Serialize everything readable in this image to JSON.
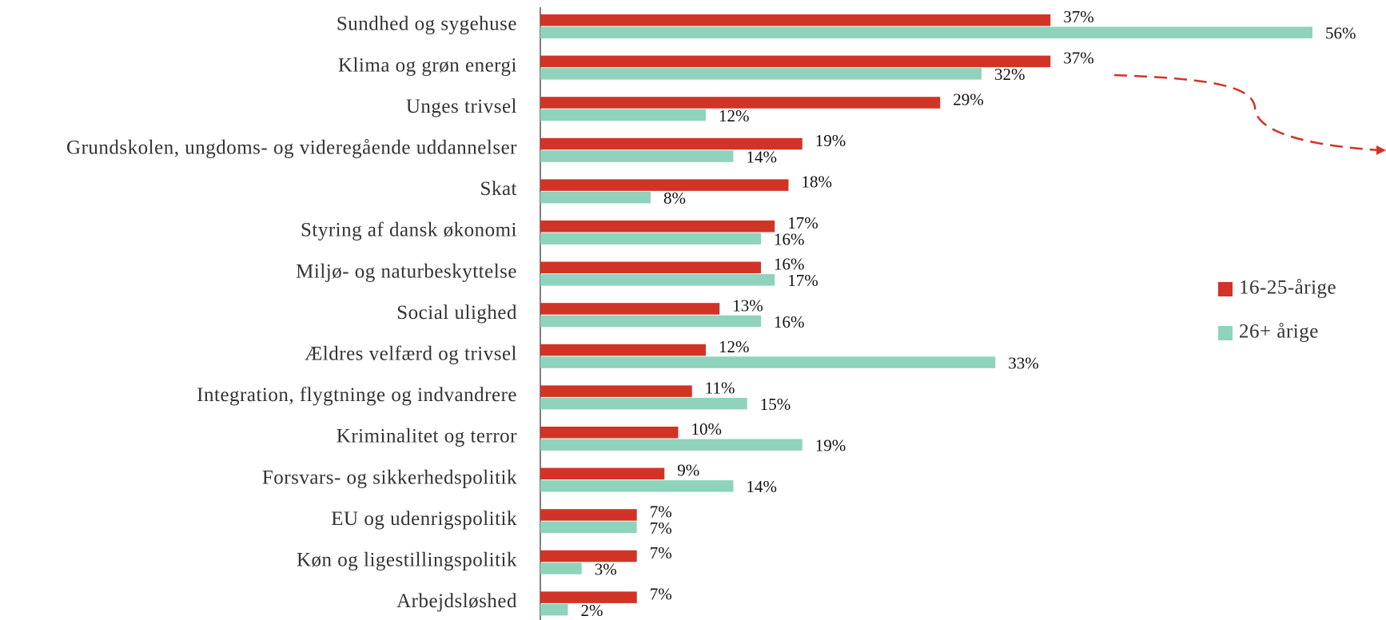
{
  "chart_data": {
    "type": "barh",
    "categories": [
      "Sundhed og sygehuse",
      "Klima og grøn energi",
      "Unges trivsel",
      "Grundskolen, ungdoms- og videregående uddannelser",
      "Skat",
      "Styring af dansk økonomi",
      "Miljø- og naturbeskyttelse",
      "Social ulighed",
      "Ældres velfærd og trivsel",
      "Integration, flygtninge og indvandrere",
      "Kriminalitet og terror",
      "Forsvars- og sikkerhedspolitik",
      "EU og udenrigspolitik",
      "Køn og ligestillingspolitik",
      "Arbejdsløshed"
    ],
    "series": [
      {
        "name": "16-25-årige",
        "color": "#d13426",
        "values": [
          37,
          37,
          29,
          19,
          18,
          17,
          16,
          13,
          12,
          11,
          10,
          9,
          7,
          7,
          7
        ],
        "value_labels": [
          "37%",
          "37%",
          "29%",
          "19%",
          "18%",
          "17%",
          "16%",
          "13%",
          "12%",
          "11%",
          "10%",
          "9%",
          "7%",
          "7%",
          "7%"
        ]
      },
      {
        "name": "26+ årige",
        "color": "#8fd3bd",
        "values": [
          56,
          32,
          12,
          14,
          8,
          16,
          17,
          16,
          33,
          15,
          19,
          14,
          7,
          3,
          2
        ],
        "value_labels": [
          "56%",
          "32%",
          "12%",
          "14%",
          "8%",
          "16%",
          "17%",
          "16%",
          "33%",
          "15%",
          "19%",
          "14%",
          "7%",
          "3%",
          "2%"
        ]
      }
    ],
    "legend": "right"
  }
}
